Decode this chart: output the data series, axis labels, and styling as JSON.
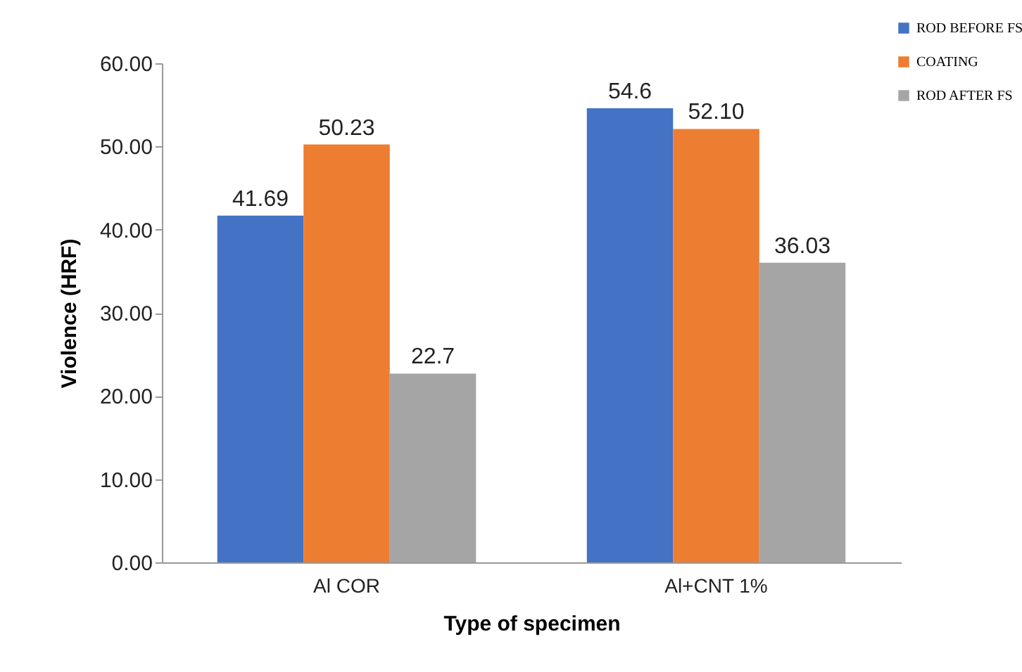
{
  "chart_data": {
    "type": "bar",
    "xlabel": "Type of specimen",
    "ylabel": "Violence (HRF)",
    "categories": [
      "Al COR",
      "Al+CNT 1%"
    ],
    "series": [
      {
        "name": "ROD BEFORE FS",
        "color": "#4472c4",
        "values": [
          41.69,
          54.6
        ],
        "value_labels": [
          "41.69",
          "54.6"
        ]
      },
      {
        "name": "COATING",
        "color": "#ed7d31",
        "values": [
          50.23,
          52.1
        ],
        "value_labels": [
          "50.23",
          "52.10"
        ]
      },
      {
        "name": "ROD AFTER FS",
        "color": "#a5a5a5",
        "values": [
          22.7,
          36.03
        ],
        "value_labels": [
          "22.7",
          "36.03"
        ]
      }
    ],
    "ylim": [
      0,
      60
    ],
    "yticks": [
      {
        "value": 0,
        "label": "0.00"
      },
      {
        "value": 10,
        "label": "10.00"
      },
      {
        "value": 20,
        "label": "20.00"
      },
      {
        "value": 30,
        "label": "30.00"
      },
      {
        "value": 40,
        "label": "40.00"
      },
      {
        "value": 50,
        "label": "50.00"
      },
      {
        "value": 60,
        "label": "60.00"
      }
    ],
    "grid": false,
    "legend": "top right"
  }
}
